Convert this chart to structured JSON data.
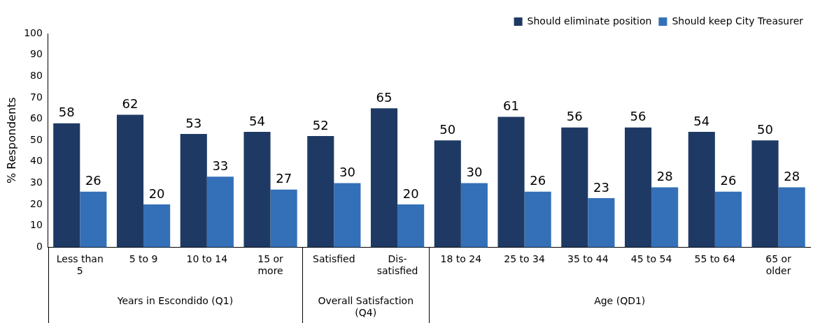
{
  "chart_data": {
    "type": "bar",
    "ylabel": "% Respondents",
    "categories": [
      "Less than 5",
      "5 to 9",
      "10 to 14",
      "15 or more",
      "Satisfied",
      "Dis-satisfied",
      "18 to 24",
      "25 to 34",
      "35 to 44",
      "45 to 54",
      "55 to 64",
      "65 or older"
    ],
    "series": [
      {
        "name": "Should eliminate position",
        "color": "#1e3a64",
        "values": [
          58,
          62,
          53,
          54,
          52,
          65,
          50,
          61,
          56,
          56,
          54,
          50
        ]
      },
      {
        "name": "Should keep City Treasurer",
        "color": "#3470b8",
        "values": [
          26,
          20,
          33,
          27,
          30,
          20,
          30,
          26,
          23,
          28,
          26,
          28
        ]
      }
    ],
    "annotations": [
      "Years in Escondido (Q1)",
      "Overall Satisfaction (Q4)",
      "Age (QD1)"
    ],
    "ylim": [
      0,
      100
    ],
    "yticks": [
      0,
      10,
      20,
      30,
      40,
      50,
      60,
      70,
      80,
      90,
      100
    ],
    "grid": false,
    "legend": "top right",
    "data_labels": true
  }
}
